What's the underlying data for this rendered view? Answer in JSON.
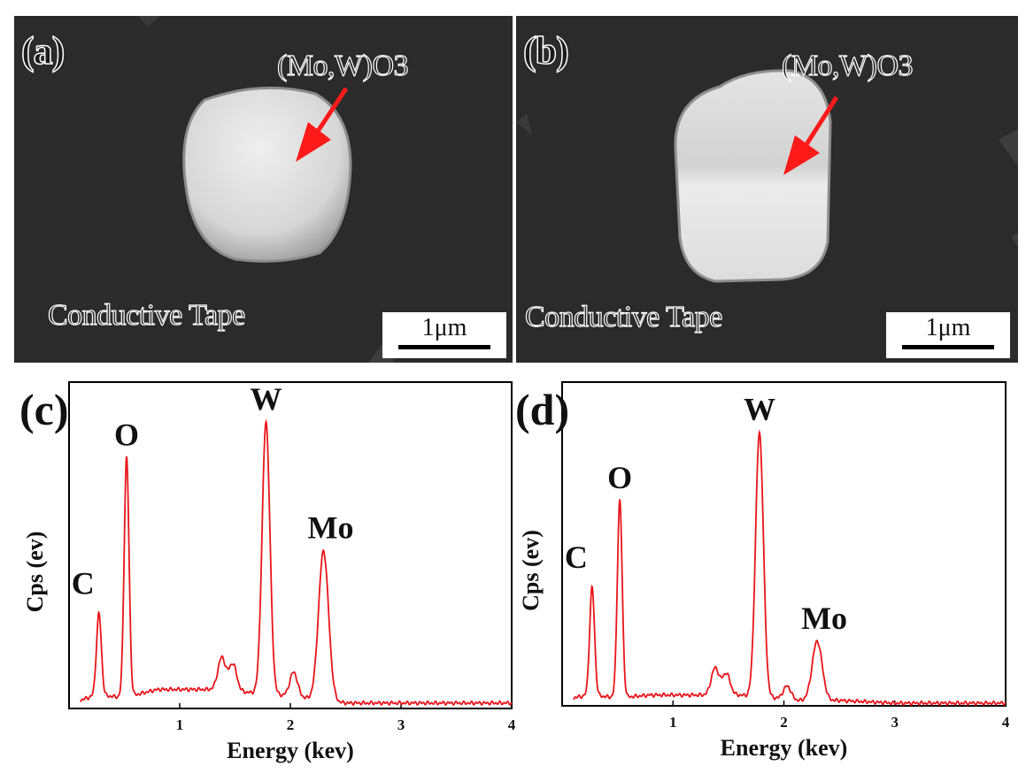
{
  "sem_panels": [
    {
      "tag": "(a)",
      "annotation": "(Mo,W)O3",
      "substrate_label": "Conductive Tape",
      "scale_bar": "1μm"
    },
    {
      "tag": "(b)",
      "annotation": "(Mo,W)O3",
      "substrate_label": "Conductive Tape",
      "scale_bar": "1μm"
    }
  ],
  "colors": {
    "spectrum": "#e8151b",
    "arrow": "#ff1a1a",
    "sem_background": "#2b2b2b",
    "particle": "#dcdcdc"
  },
  "chart_data": [
    {
      "type": "line",
      "tag": "(c)",
      "xlabel": "Energy (kev)",
      "ylabel": "Cps (ev)",
      "xlim": [
        0,
        4
      ],
      "ylim": [
        0,
        1.2
      ],
      "x_ticks": [
        "1",
        "2",
        "3",
        "4"
      ],
      "baseline": {
        "x": [
          0.1,
          0.25,
          0.5,
          0.8,
          1.0,
          1.3,
          1.6,
          1.9,
          2.1,
          2.5,
          3.0,
          3.5,
          4.0
        ],
        "y": [
          0.03,
          0.05,
          0.04,
          0.07,
          0.07,
          0.07,
          0.06,
          0.05,
          0.04,
          0.02,
          0.02,
          0.02,
          0.02
        ]
      },
      "peaks": [
        {
          "label": "C",
          "x": 0.27,
          "y": 0.3
        },
        {
          "label": "O",
          "x": 0.52,
          "y": 0.88
        },
        {
          "label": "",
          "x": 1.38,
          "y": 0.12
        },
        {
          "label": "",
          "x": 1.48,
          "y": 0.1
        },
        {
          "label": "W",
          "x": 1.78,
          "y": 1.0
        },
        {
          "label": "",
          "x": 2.03,
          "y": 0.09
        },
        {
          "label": "Mo",
          "x": 2.3,
          "y": 0.55
        }
      ]
    },
    {
      "type": "line",
      "tag": "(d)",
      "xlabel": "Energy (kev)",
      "ylabel": "Cps (ev)",
      "xlim": [
        0,
        4
      ],
      "ylim": [
        0,
        1.2
      ],
      "x_ticks": [
        "1",
        "2",
        "3",
        "4"
      ],
      "baseline": {
        "x": [
          0.1,
          0.25,
          0.5,
          0.8,
          1.0,
          1.3,
          1.6,
          1.9,
          2.1,
          2.5,
          3.0,
          3.5,
          4.0
        ],
        "y": [
          0.03,
          0.04,
          0.03,
          0.04,
          0.04,
          0.04,
          0.04,
          0.03,
          0.02,
          0.02,
          0.01,
          0.01,
          0.01
        ]
      },
      "peaks": [
        {
          "label": "C",
          "x": 0.27,
          "y": 0.4
        },
        {
          "label": "O",
          "x": 0.52,
          "y": 0.73
        },
        {
          "label": "",
          "x": 1.38,
          "y": 0.1
        },
        {
          "label": "",
          "x": 1.48,
          "y": 0.08
        },
        {
          "label": "W",
          "x": 1.78,
          "y": 0.98
        },
        {
          "label": "",
          "x": 2.03,
          "y": 0.05
        },
        {
          "label": "Mo",
          "x": 2.3,
          "y": 0.22
        }
      ]
    }
  ]
}
